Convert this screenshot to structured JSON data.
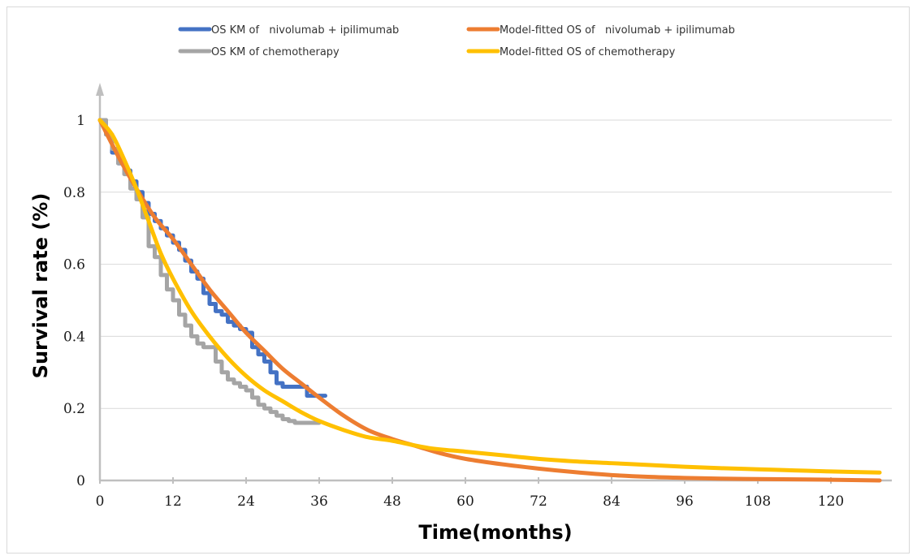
{
  "chart_data": {
    "type": "line",
    "title": "",
    "xlabel": "Time(months)",
    "ylabel": "Survival rate (%)",
    "xlim": [
      0,
      130
    ],
    "ylim": [
      0,
      1
    ],
    "x_ticks": [
      0,
      12,
      24,
      36,
      48,
      60,
      72,
      84,
      96,
      108,
      120
    ],
    "y_ticks": [
      0,
      0.2,
      0.4,
      0.6,
      0.8,
      1
    ],
    "y_tick_labels": [
      "0",
      "0.2",
      "0.4",
      "0.6",
      "0.8",
      "1"
    ],
    "grid": "horizontal",
    "legend_position": "top",
    "series": [
      {
        "name": "OS KM of   nivolumab + ipilimumab",
        "color": "#4472c4",
        "style": "step",
        "x": [
          0,
          1,
          2,
          3,
          4,
          5,
          6,
          7,
          8,
          9,
          10,
          11,
          12,
          13,
          14,
          15,
          16,
          17,
          18,
          19,
          20,
          21,
          22,
          23,
          24,
          25,
          26,
          27,
          28,
          29,
          30,
          31,
          32,
          33,
          34,
          35,
          36,
          37
        ],
        "y": [
          1.0,
          0.96,
          0.91,
          0.88,
          0.86,
          0.83,
          0.8,
          0.77,
          0.74,
          0.72,
          0.7,
          0.68,
          0.66,
          0.64,
          0.61,
          0.58,
          0.56,
          0.52,
          0.49,
          0.47,
          0.46,
          0.44,
          0.43,
          0.42,
          0.41,
          0.37,
          0.35,
          0.33,
          0.3,
          0.27,
          0.26,
          0.26,
          0.26,
          0.26,
          0.235,
          0.235,
          0.235,
          0.235
        ]
      },
      {
        "name": "OS KM of chemotherapy",
        "color": "#a5a5a5",
        "style": "step",
        "x": [
          0,
          1,
          2,
          3,
          4,
          5,
          6,
          7,
          8,
          9,
          10,
          11,
          12,
          13,
          14,
          15,
          16,
          17,
          18,
          19,
          20,
          21,
          22,
          23,
          24,
          25,
          26,
          27,
          28,
          29,
          30,
          31,
          32,
          33,
          34,
          35,
          36
        ],
        "y": [
          1.0,
          0.96,
          0.92,
          0.88,
          0.85,
          0.81,
          0.78,
          0.73,
          0.65,
          0.62,
          0.57,
          0.53,
          0.5,
          0.46,
          0.43,
          0.4,
          0.38,
          0.37,
          0.37,
          0.33,
          0.3,
          0.28,
          0.27,
          0.26,
          0.25,
          0.23,
          0.21,
          0.2,
          0.19,
          0.18,
          0.17,
          0.165,
          0.16,
          0.16,
          0.16,
          0.16,
          0.16
        ]
      },
      {
        "name": "Model-fitted OS of   nivolumab + ipilimumab",
        "color": "#ed7d31",
        "style": "smooth",
        "x": [
          0,
          3,
          6,
          9,
          12,
          15,
          18,
          21,
          24,
          27,
          30,
          33,
          36,
          40,
          44,
          48,
          52,
          56,
          60,
          66,
          72,
          78,
          84,
          90,
          96,
          102,
          108,
          114,
          120,
          128
        ],
        "y": [
          1.0,
          0.9,
          0.81,
          0.73,
          0.67,
          0.6,
          0.53,
          0.47,
          0.41,
          0.36,
          0.31,
          0.27,
          0.23,
          0.18,
          0.14,
          0.115,
          0.095,
          0.075,
          0.06,
          0.045,
          0.033,
          0.023,
          0.015,
          0.01,
          0.007,
          0.005,
          0.004,
          0.003,
          0.002,
          0.0
        ]
      },
      {
        "name": "Model-fitted OS of chemotherapy",
        "color": "#ffc000",
        "style": "smooth",
        "x": [
          0,
          2,
          4,
          6,
          8,
          10,
          12,
          15,
          18,
          21,
          24,
          27,
          30,
          33,
          36,
          40,
          44,
          48,
          54,
          60,
          66,
          72,
          78,
          84,
          90,
          96,
          102,
          108,
          114,
          120,
          128
        ],
        "y": [
          1.0,
          0.96,
          0.89,
          0.81,
          0.72,
          0.63,
          0.56,
          0.47,
          0.4,
          0.34,
          0.29,
          0.25,
          0.22,
          0.19,
          0.165,
          0.14,
          0.12,
          0.11,
          0.09,
          0.08,
          0.07,
          0.06,
          0.053,
          0.048,
          0.043,
          0.038,
          0.034,
          0.031,
          0.028,
          0.025,
          0.022
        ]
      }
    ]
  }
}
